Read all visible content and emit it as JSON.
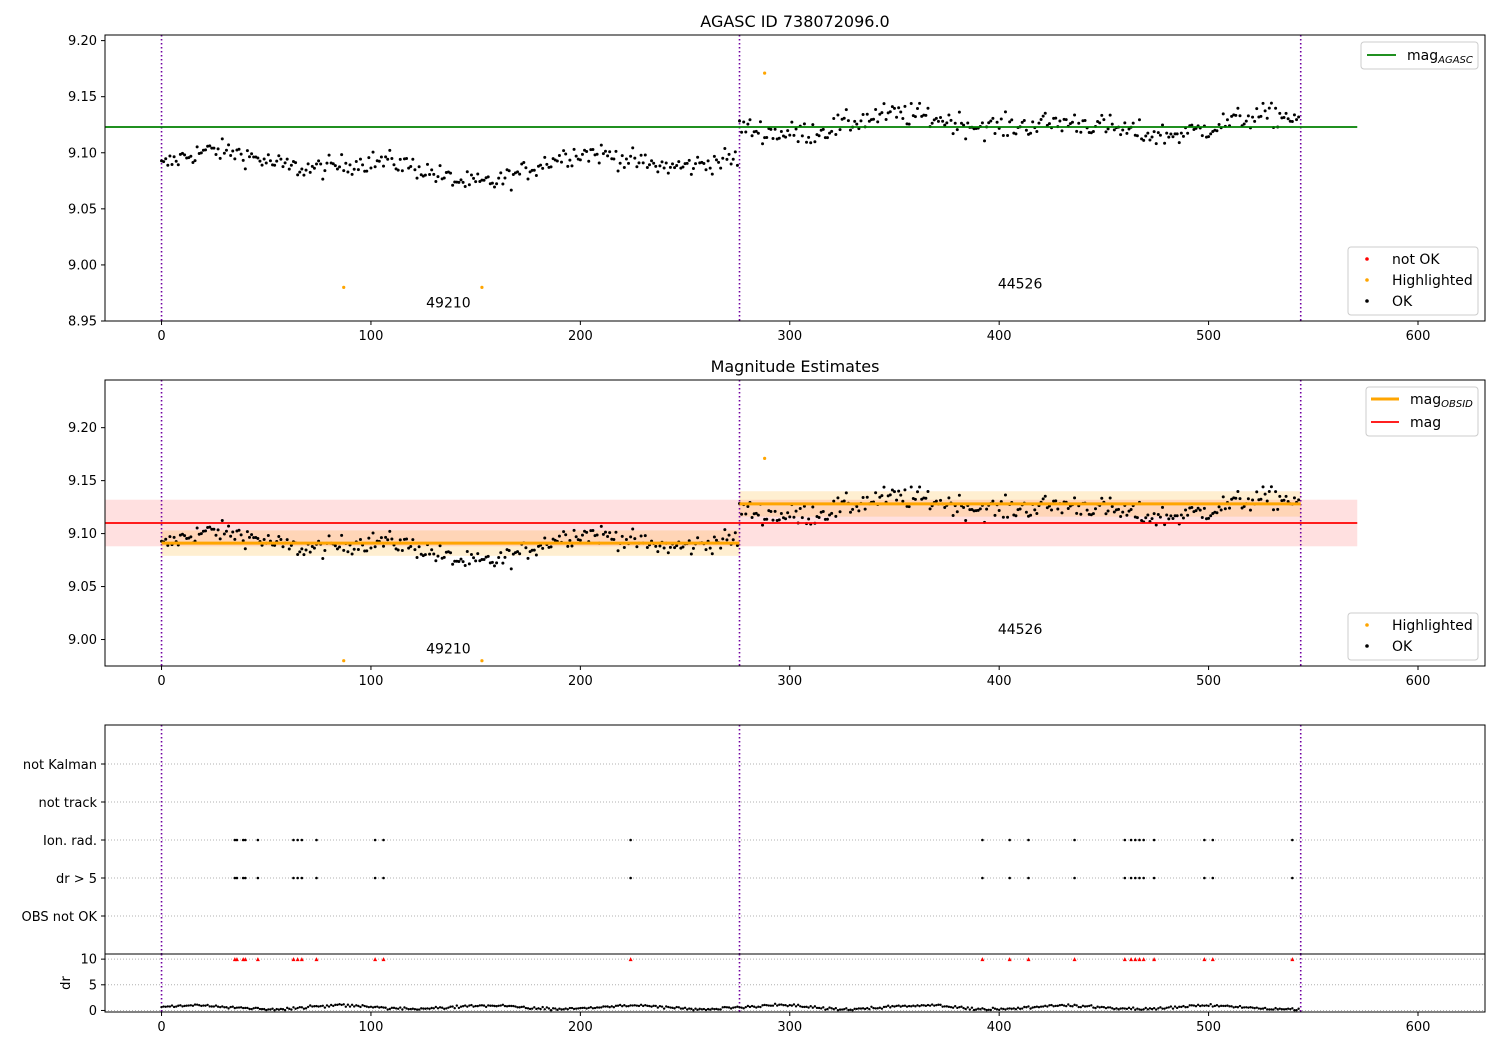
{
  "chart_data": [
    {
      "type": "scatter",
      "title": "AGASC ID 738072096.0",
      "xlim": [
        -27,
        632
      ],
      "ylim": [
        8.95,
        9.205
      ],
      "xticks": [
        "0",
        "100",
        "200",
        "300",
        "400",
        "500",
        "600"
      ],
      "yticks": [
        "8.95",
        "9.00",
        "9.05",
        "9.10",
        "9.15",
        "9.20"
      ],
      "vlines": [
        0,
        276,
        544
      ],
      "hline": {
        "value": 9.123,
        "x_range": [
          0,
          571
        ],
        "color": "#008000"
      },
      "segments": [
        {
          "from": 0,
          "to": 276,
          "base": 9.088,
          "amp": 0.016,
          "noise": 0.009,
          "count": 276
        },
        {
          "from": 276,
          "to": 544,
          "base": 9.125,
          "amp": 0.01,
          "noise": 0.01,
          "count": 268
        }
      ],
      "highlighted": [
        [
          87,
          8.98
        ],
        [
          153,
          8.98
        ],
        [
          288,
          9.171
        ]
      ],
      "annotations": [
        {
          "x": 137,
          "y": 8.962,
          "text": "49210"
        },
        {
          "x": 410,
          "y": 8.979,
          "text": "44526"
        }
      ],
      "legend_lines": [
        {
          "label": "mag",
          "sub": "AGASC",
          "color": "#008000"
        }
      ],
      "legend_points": [
        {
          "label": "not OK",
          "color": "#ff0000"
        },
        {
          "label": "Highlighted",
          "color": "#ffa500"
        },
        {
          "label": "OK",
          "color": "#000000"
        }
      ]
    },
    {
      "type": "scatter",
      "title": "Magnitude Estimates",
      "xlim": [
        -27,
        632
      ],
      "ylim": [
        8.975,
        9.245
      ],
      "xticks": [
        "0",
        "100",
        "200",
        "300",
        "400",
        "500",
        "600"
      ],
      "yticks": [
        "9.00",
        "9.05",
        "9.10",
        "9.15",
        "9.20"
      ],
      "vlines": [
        0,
        276,
        544
      ],
      "band": {
        "value": 9.11,
        "low": 9.088,
        "high": 9.132,
        "x_range": [
          0,
          571
        ]
      },
      "obsid_levels": [
        {
          "from": 0,
          "to": 276,
          "value": 9.091,
          "low": 9.079,
          "high": 9.103
        },
        {
          "from": 276,
          "to": 544,
          "value": 9.128,
          "low": 9.116,
          "high": 9.14
        }
      ],
      "highlighted": [
        [
          87,
          8.98
        ],
        [
          153,
          8.98
        ],
        [
          288,
          9.171
        ]
      ],
      "annotations": [
        {
          "x": 137,
          "y": 8.987,
          "text": "49210"
        },
        {
          "x": 410,
          "y": 9.005,
          "text": "44526"
        }
      ],
      "legend_lines": [
        {
          "label": "mag",
          "sub": "OBSID",
          "color": "#ffa500"
        },
        {
          "label": "mag",
          "sub": "",
          "color": "#ff0000"
        }
      ],
      "legend_points": [
        {
          "label": "Highlighted",
          "color": "#ffa500"
        },
        {
          "label": "OK",
          "color": "#000000"
        }
      ]
    },
    {
      "type": "scatter",
      "title": "",
      "xlim": [
        -27,
        632
      ],
      "categories": [
        "not Kalman",
        "not track",
        "Ion. rad.",
        "dr > 5",
        "OBS not OK"
      ],
      "flag_x": [
        35,
        36,
        39,
        40,
        46,
        63,
        65,
        67,
        74,
        102,
        106,
        224,
        392,
        405,
        414,
        436,
        460,
        463,
        465,
        467,
        469,
        474,
        498,
        502,
        540
      ],
      "flag_rows": [
        "Ion. rad.",
        "dr > 5"
      ],
      "vlines": [
        0,
        276,
        544
      ]
    },
    {
      "type": "scatter",
      "title": "",
      "xlim": [
        -27,
        632
      ],
      "ylabel": "dr",
      "ylim": [
        -0.3,
        11
      ],
      "yticks": [
        "0",
        "5",
        "10"
      ],
      "xticks": [
        "0",
        "100",
        "200",
        "300",
        "400",
        "500",
        "600"
      ],
      "clipped_marker": {
        "value": 10,
        "color": "#ff0000"
      },
      "vlines": [
        0,
        276,
        544
      ]
    }
  ]
}
